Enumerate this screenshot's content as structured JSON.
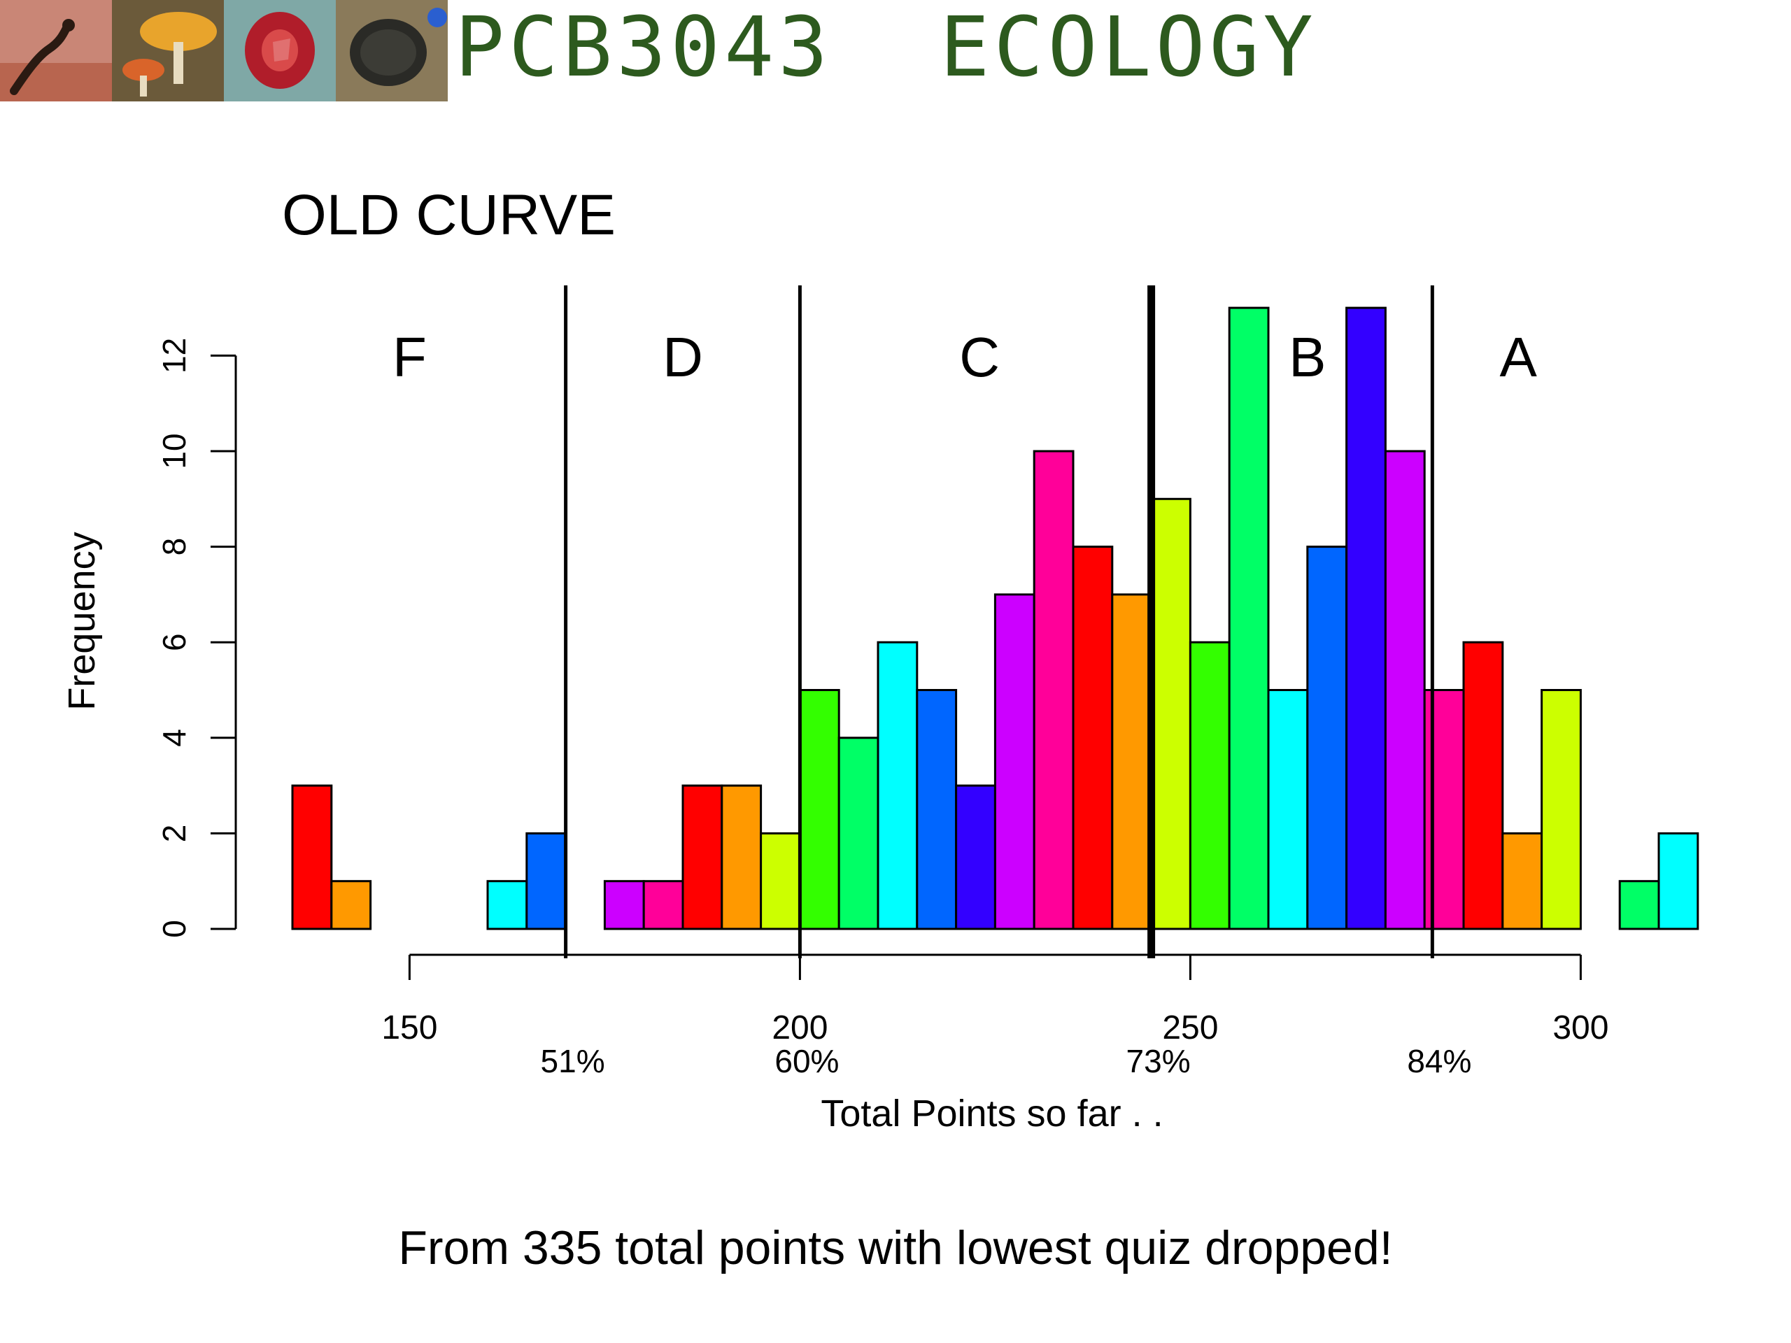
{
  "header": {
    "course_title": "PCB3043  ECOLOGY",
    "photos": [
      "salamander-photo",
      "mushroom-photo",
      "pitcher-plant-photo",
      "turtle-photo"
    ]
  },
  "chart_data": {
    "type": "bar",
    "title": "OLD CURVE",
    "xlabel": "Total Points so far . .",
    "ylabel": "Frequency",
    "bin_width": 5,
    "bin_starts": [
      135,
      140,
      145,
      150,
      155,
      160,
      165,
      170,
      175,
      180,
      185,
      190,
      195,
      200,
      205,
      210,
      215,
      220,
      225,
      230,
      235,
      240,
      245,
      250,
      255,
      260,
      265,
      270,
      275,
      280,
      285,
      290,
      295,
      300,
      305,
      310
    ],
    "values": [
      3,
      1,
      0,
      0,
      0,
      1,
      2,
      0,
      1,
      1,
      3,
      3,
      2,
      5,
      4,
      6,
      5,
      3,
      7,
      10,
      8,
      7,
      9,
      6,
      13,
      5,
      8,
      13,
      10,
      5,
      6,
      2,
      5,
      0,
      1,
      2
    ],
    "bar_colors": [
      "#FF0000",
      "#FF9900",
      "#CCFF00",
      "#33FF00",
      "#00FF66",
      "#00FFFF",
      "#0066FF",
      "#3300FF",
      "#CC00FF",
      "#FF0099"
    ],
    "xlim": [
      135,
      315
    ],
    "ylim": [
      0,
      13
    ],
    "x_ticks": [
      150,
      200,
      250,
      300
    ],
    "y_ticks": [
      0,
      2,
      4,
      6,
      8,
      10,
      12
    ],
    "grade_cutoffs": [
      {
        "x": 170,
        "percent": "51%",
        "bold": false
      },
      {
        "x": 200,
        "percent": "60%",
        "bold": false
      },
      {
        "x": 245,
        "percent": "73%",
        "bold": true
      },
      {
        "x": 281,
        "percent": "84%",
        "bold": false
      }
    ],
    "grade_labels": [
      {
        "label": "F",
        "x": 150
      },
      {
        "label": "D",
        "x": 185
      },
      {
        "label": "C",
        "x": 223
      },
      {
        "label": "B",
        "x": 265
      },
      {
        "label": "A",
        "x": 292
      }
    ],
    "grid": false
  },
  "footnote": "From 335 total points with lowest quiz dropped!"
}
